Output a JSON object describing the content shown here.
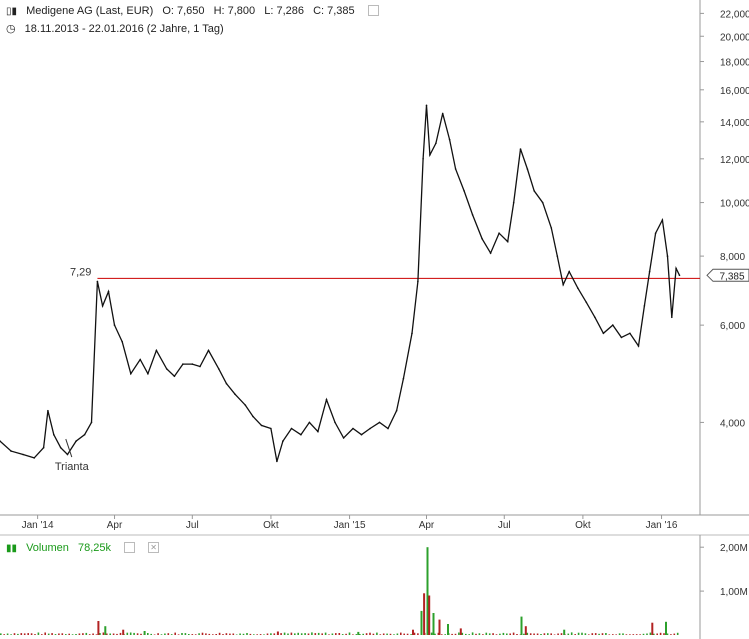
{
  "header": {
    "instrument": "Medigene AG (Last, EUR)",
    "open": "O: 7,650",
    "high": "H: 7,800",
    "low": "L: 7,286",
    "close": "C: 7,385",
    "range": "18.11.2013 - 22.01.2016 (2 Jahre, 1 Tag)"
  },
  "volume_header": {
    "label": "Volumen",
    "value": "78,25k"
  },
  "colors": {
    "price": "#111111",
    "reference_line": "#cc0000",
    "volume_up": "#2ca02c",
    "volume_down": "#b22222",
    "grid": "#dddddd"
  },
  "chart_data": [
    {
      "type": "line",
      "scale": "log",
      "y_ticks": [
        "4,000",
        "6,000",
        "8,000",
        "10,000",
        "12,000",
        "14,000",
        "16,000",
        "18,000",
        "20,000",
        "22,000"
      ],
      "y_tick_values": [
        4,
        6,
        8,
        10,
        12,
        14,
        16,
        18,
        20,
        22
      ],
      "ylim": [
        2.8,
        22.5
      ],
      "x_ticks": [
        "Jan '14",
        "Apr",
        "Jul",
        "Okt",
        "Jan '15",
        "Apr",
        "Jul",
        "Okt",
        "Jan '16"
      ],
      "x_tick_dates": [
        "2014-01-01",
        "2014-04-01",
        "2014-07-01",
        "2014-10-01",
        "2015-01-01",
        "2015-04-01",
        "2015-07-01",
        "2015-10-01",
        "2016-01-01"
      ],
      "xlim": [
        "2013-11-18",
        "2016-02-15"
      ],
      "reference_line": {
        "value": 7.29,
        "label": "7,29",
        "start": "2014-03-12"
      },
      "last_price": {
        "value": 7.385,
        "label": "7,385"
      },
      "annotation": {
        "text": "Trianta",
        "date": "2014-02-10",
        "value": 3.55
      },
      "series": [
        {
          "points": [
            [
              "2013-11-18",
              3.7
            ],
            [
              "2013-12-01",
              3.55
            ],
            [
              "2013-12-15",
              3.5
            ],
            [
              "2013-12-28",
              3.45
            ],
            [
              "2014-01-08",
              3.6
            ],
            [
              "2014-01-13",
              4.2
            ],
            [
              "2014-01-20",
              3.8
            ],
            [
              "2014-01-28",
              3.6
            ],
            [
              "2014-02-05",
              3.5
            ],
            [
              "2014-02-15",
              3.7
            ],
            [
              "2014-02-25",
              3.8
            ],
            [
              "2014-03-05",
              4.0
            ],
            [
              "2014-03-12",
              7.2
            ],
            [
              "2014-03-18",
              6.5
            ],
            [
              "2014-03-25",
              6.9
            ],
            [
              "2014-04-01",
              6.0
            ],
            [
              "2014-04-10",
              5.6
            ],
            [
              "2014-04-20",
              4.9
            ],
            [
              "2014-05-01",
              5.2
            ],
            [
              "2014-05-10",
              4.9
            ],
            [
              "2014-05-20",
              5.4
            ],
            [
              "2014-06-01",
              5.0
            ],
            [
              "2014-06-10",
              4.85
            ],
            [
              "2014-06-20",
              5.1
            ],
            [
              "2014-07-01",
              5.1
            ],
            [
              "2014-07-10",
              5.05
            ],
            [
              "2014-07-20",
              5.4
            ],
            [
              "2014-08-01",
              5.0
            ],
            [
              "2014-08-10",
              4.7
            ],
            [
              "2014-08-20",
              4.5
            ],
            [
              "2014-09-01",
              4.3
            ],
            [
              "2014-09-10",
              4.1
            ],
            [
              "2014-09-20",
              3.95
            ],
            [
              "2014-10-01",
              3.9
            ],
            [
              "2014-10-08",
              3.4
            ],
            [
              "2014-10-15",
              3.7
            ],
            [
              "2014-10-25",
              3.9
            ],
            [
              "2014-11-05",
              3.8
            ],
            [
              "2014-11-15",
              4.0
            ],
            [
              "2014-11-25",
              3.85
            ],
            [
              "2014-12-05",
              4.4
            ],
            [
              "2014-12-15",
              4.0
            ],
            [
              "2014-12-25",
              3.75
            ],
            [
              "2015-01-05",
              3.9
            ],
            [
              "2015-01-15",
              3.8
            ],
            [
              "2015-01-25",
              3.9
            ],
            [
              "2015-02-05",
              4.0
            ],
            [
              "2015-02-15",
              3.9
            ],
            [
              "2015-02-25",
              4.2
            ],
            [
              "2015-03-05",
              4.8
            ],
            [
              "2015-03-15",
              5.8
            ],
            [
              "2015-03-22",
              7.2
            ],
            [
              "2015-03-28",
              12.0
            ],
            [
              "2015-04-01",
              15.0
            ],
            [
              "2015-04-05",
              12.2
            ],
            [
              "2015-04-12",
              12.8
            ],
            [
              "2015-04-20",
              14.5
            ],
            [
              "2015-04-28",
              13.0
            ],
            [
              "2015-05-05",
              11.5
            ],
            [
              "2015-05-15",
              10.5
            ],
            [
              "2015-05-25",
              9.5
            ],
            [
              "2015-06-05",
              8.6
            ],
            [
              "2015-06-15",
              8.1
            ],
            [
              "2015-06-25",
              8.8
            ],
            [
              "2015-07-05",
              8.5
            ],
            [
              "2015-07-12",
              10.0
            ],
            [
              "2015-07-20",
              12.5
            ],
            [
              "2015-07-28",
              11.5
            ],
            [
              "2015-08-05",
              10.5
            ],
            [
              "2015-08-15",
              10.0
            ],
            [
              "2015-08-25",
              9.0
            ],
            [
              "2015-09-01",
              8.0
            ],
            [
              "2015-09-08",
              7.1
            ],
            [
              "2015-09-15",
              7.5
            ],
            [
              "2015-09-25",
              7.0
            ],
            [
              "2015-10-05",
              6.6
            ],
            [
              "2015-10-15",
              6.2
            ],
            [
              "2015-10-25",
              5.8
            ],
            [
              "2015-11-05",
              6.0
            ],
            [
              "2015-11-15",
              5.7
            ],
            [
              "2015-11-25",
              5.8
            ],
            [
              "2015-12-05",
              5.5
            ],
            [
              "2015-12-12",
              6.5
            ],
            [
              "2015-12-18",
              7.5
            ],
            [
              "2015-12-25",
              8.8
            ],
            [
              "2016-01-02",
              9.3
            ],
            [
              "2016-01-08",
              8.0
            ],
            [
              "2016-01-13",
              6.2
            ],
            [
              "2016-01-18",
              7.6
            ],
            [
              "2016-01-22",
              7.385
            ]
          ]
        }
      ]
    },
    {
      "type": "bar",
      "series_name": "Volumen",
      "y_ticks": [
        "1,00M",
        "2,00M"
      ],
      "y_tick_values": [
        1.0,
        2.0
      ],
      "ylim": [
        0,
        2.05
      ],
      "unit": "M",
      "spikes": [
        [
          "2014-03-12",
          0.32
        ],
        [
          "2014-03-20",
          0.2
        ],
        [
          "2014-04-10",
          0.12
        ],
        [
          "2014-05-05",
          0.09
        ],
        [
          "2014-10-08",
          0.08
        ],
        [
          "2015-01-10",
          0.07
        ],
        [
          "2015-03-15",
          0.12
        ],
        [
          "2015-03-25",
          0.55
        ],
        [
          "2015-03-28",
          0.95
        ],
        [
          "2015-04-01",
          2.0
        ],
        [
          "2015-04-03",
          0.9
        ],
        [
          "2015-04-08",
          0.5
        ],
        [
          "2015-04-15",
          0.35
        ],
        [
          "2015-04-25",
          0.25
        ],
        [
          "2015-05-10",
          0.15
        ],
        [
          "2015-07-20",
          0.42
        ],
        [
          "2015-07-25",
          0.2
        ],
        [
          "2015-09-08",
          0.12
        ],
        [
          "2015-12-20",
          0.28
        ],
        [
          "2016-01-05",
          0.3
        ]
      ],
      "baseline": 0.04
    }
  ]
}
